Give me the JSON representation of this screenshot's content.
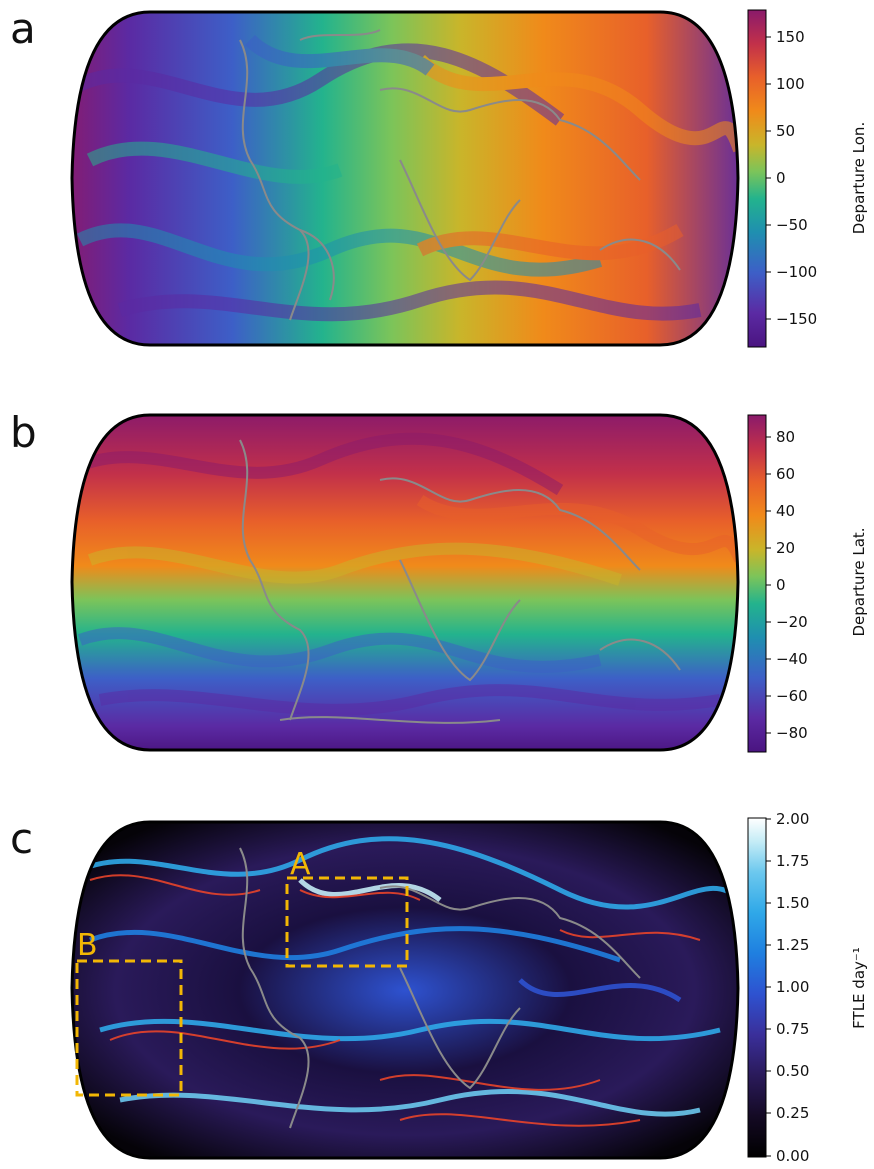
{
  "panels": [
    {
      "id": "a",
      "letter": "a",
      "colorbar": {
        "label": "Departure Lon.",
        "ticks": [
          "150",
          "100",
          "50",
          "0",
          "−50",
          "−100",
          "−150"
        ],
        "range": [
          -180,
          180
        ],
        "colormap": [
          "#4a1480",
          "#5b2aa3",
          "#3d5fc7",
          "#1f8fb0",
          "#23b38d",
          "#7bc45a",
          "#c9b52a",
          "#f08a1a",
          "#e8602a",
          "#c2304a",
          "#8a1a6b"
        ]
      }
    },
    {
      "id": "b",
      "letter": "b",
      "colorbar": {
        "label": "Departure Lat.",
        "ticks": [
          "80",
          "60",
          "40",
          "20",
          "0",
          "−20",
          "−40",
          "−60",
          "−80"
        ],
        "range": [
          -90,
          90
        ],
        "colormap": [
          "#4a1480",
          "#5b2aa3",
          "#3d5fc7",
          "#1f8fb0",
          "#23b38d",
          "#7bc45a",
          "#c9b52a",
          "#f08a1a",
          "#e8602a",
          "#c2304a",
          "#8a1a6b"
        ]
      }
    },
    {
      "id": "c",
      "letter": "c",
      "colorbar": {
        "label": "FTLE day⁻¹",
        "ticks": [
          "2.00",
          "1.75",
          "1.50",
          "1.25",
          "1.00",
          "0.75",
          "0.50",
          "0.25",
          "0.00"
        ],
        "range": [
          0,
          2
        ],
        "colormap": [
          "#000000",
          "#140a24",
          "#2a1a5a",
          "#3a2f9a",
          "#2e52d0",
          "#1f7fe0",
          "#2fa8e8",
          "#6cc8ee",
          "#c4ecf6",
          "#ffffff"
        ]
      },
      "boxes": [
        {
          "label": "A"
        },
        {
          "label": "B"
        }
      ],
      "box_color": "#f2b705"
    }
  ]
}
